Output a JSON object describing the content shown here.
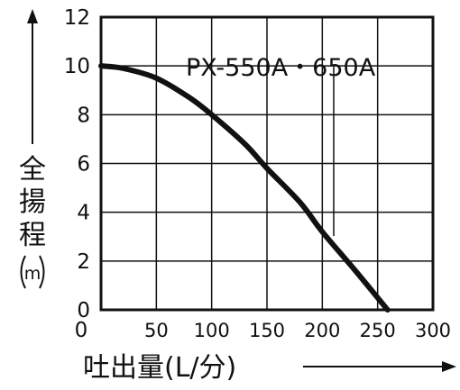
{
  "chart_data": {
    "type": "line",
    "xlabel": "吐出量(L/分)",
    "ylabel": "全揚程(m)",
    "xlim": [
      0,
      300
    ],
    "ylim": [
      0,
      12
    ],
    "x_ticks": [
      0,
      50,
      100,
      150,
      200,
      250,
      300
    ],
    "y_ticks": [
      0,
      2,
      4,
      6,
      8,
      10,
      12
    ],
    "grid": true,
    "series": [
      {
        "name": "PX-550A・650A",
        "x": [
          0,
          20,
          50,
          80,
          100,
          130,
          150,
          180,
          200,
          230,
          259
        ],
        "y": [
          10.0,
          9.9,
          9.5,
          8.7,
          8.0,
          6.8,
          5.8,
          4.4,
          3.2,
          1.6,
          0.0
        ]
      }
    ]
  },
  "labels": {
    "series_label": "PX-550A・650A",
    "ylabel_chars": [
      "全",
      "揚",
      "程"
    ],
    "ylabel_unit": "m",
    "xlabel": "吐出量(L/分)"
  }
}
